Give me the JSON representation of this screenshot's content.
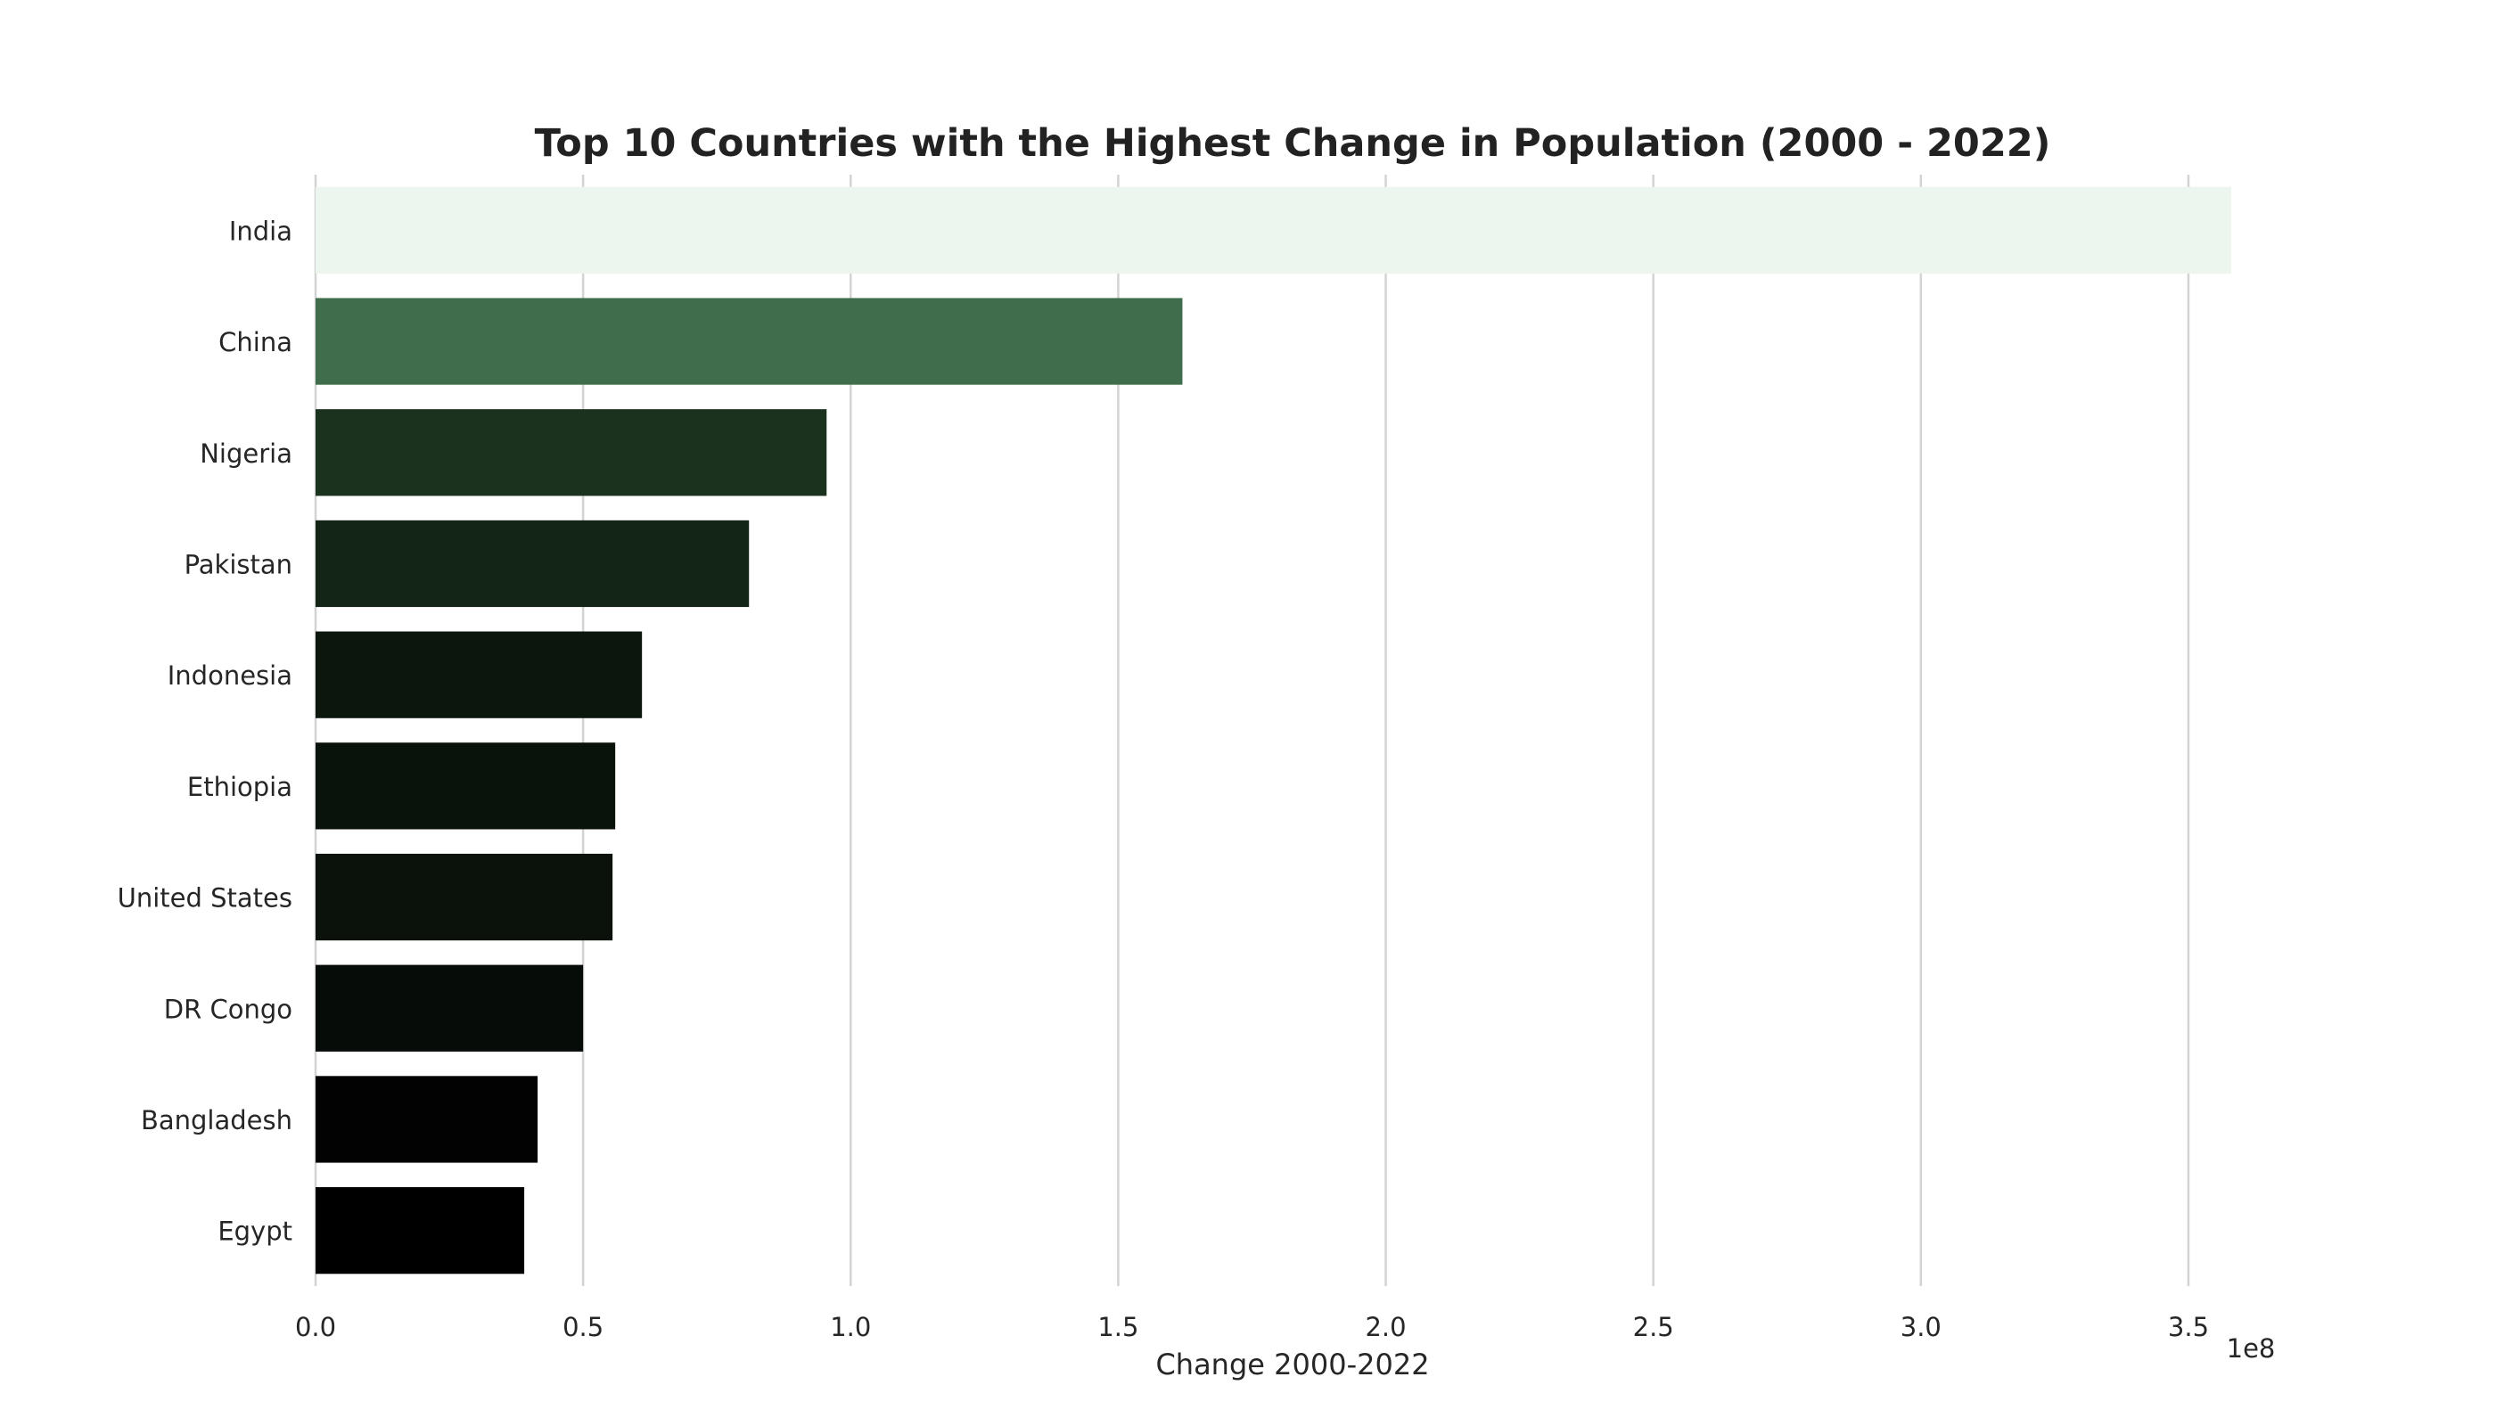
{
  "chart_data": {
    "type": "bar",
    "orientation": "horizontal",
    "title": "Top 10 Countries with the Highest Change in Population (2000 - 2022)",
    "xlabel": "Change 2000-2022",
    "ylabel": "",
    "x_offset_label": "1e8",
    "x_scale_factor": 100000000,
    "xlim": [
      0,
      3.6
    ],
    "x_ticks": [
      0.0,
      0.5,
      1.0,
      1.5,
      2.0,
      2.5,
      3.0,
      3.5
    ],
    "x_tick_labels": [
      "0.0",
      "0.5",
      "1.0",
      "1.5",
      "2.0",
      "2.5",
      "3.0",
      "3.5"
    ],
    "grid": "vertical",
    "legend": "none",
    "categories": [
      "India",
      "China",
      "Nigeria",
      "Pakistan",
      "Indonesia",
      "Ethiopia",
      "United States",
      "DR Congo",
      "Bangladesh",
      "Egypt"
    ],
    "values": [
      3.58,
      1.62,
      0.955,
      0.81,
      0.61,
      0.56,
      0.555,
      0.5,
      0.415,
      0.39
    ],
    "colors": [
      "#edf5ef",
      "#406d4b",
      "#1b321f",
      "#122516",
      "#0b160c",
      "#0a130b",
      "#0a120b",
      "#060c07",
      "#010201",
      "#000000"
    ]
  }
}
